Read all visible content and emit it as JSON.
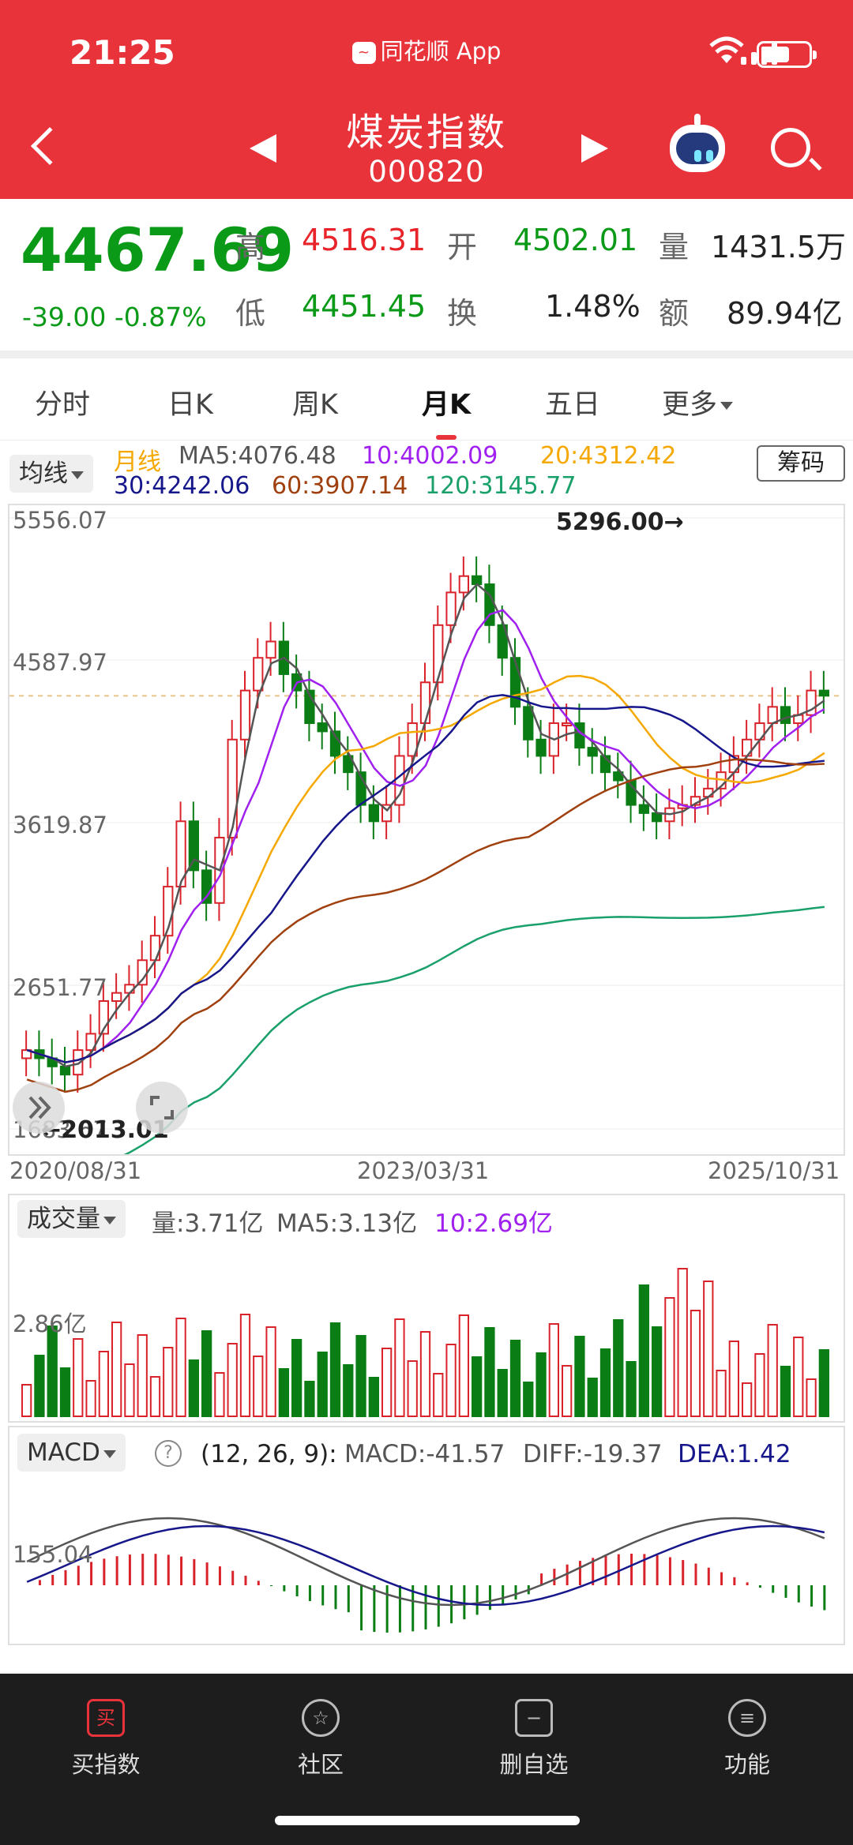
{
  "status": {
    "time": "21:25",
    "app": "同花顺 App"
  },
  "header": {
    "title": "煤炭指数",
    "code": "000820"
  },
  "quote": {
    "price": "4467.69",
    "change": "-39.00",
    "change_pct": "-0.87%",
    "high_label": "高",
    "high": "4516.31",
    "open_label": "开",
    "open": "4502.01",
    "vol_label": "量",
    "vol": "1431.5万",
    "low_label": "低",
    "low": "4451.45",
    "turn_label": "换",
    "turn": "1.48%",
    "amt_label": "额",
    "amt": "89.94亿"
  },
  "tabs": [
    "分时",
    "日K",
    "周K",
    "月K",
    "五日",
    "更多"
  ],
  "ma": {
    "chip": "均线",
    "label": "月线",
    "ma5": "MA5:4076.48",
    "ma10": "10:4002.09",
    "ma20": "20:4312.42",
    "ma30": "30:4242.06",
    "ma60": "60:3907.14",
    "ma120": "120:3145.77",
    "chouma": "筹码"
  },
  "chart_data": {
    "type": "candlestick",
    "y_labels": [
      "5556.07",
      "4587.97",
      "3619.87",
      "2651.77",
      "1683.67"
    ],
    "x_labels": [
      "2020/08/31",
      "2023/03/31",
      "2025/10/31"
    ],
    "high_marker": "5296.00→",
    "low_marker": "←2013.01",
    "last_close": 4467.69,
    "colors": {
      "up": "#d9232b",
      "down": "#0a7d14",
      "ma5": "#555555",
      "ma10": "#a020f0",
      "ma20": "#f5a800",
      "ma30": "#17178c",
      "ma60": "#a0400e",
      "ma120": "#1aa06a"
    }
  },
  "volume": {
    "chip": "成交量",
    "vol": "量:3.71亿",
    "ma5": "MA5:3.13亿",
    "ma10": "10:2.69亿",
    "y_label": "2.86亿"
  },
  "macd": {
    "chip": "MACD",
    "help": "?",
    "params": "(12, 26, 9):",
    "macd": "MACD:-41.57",
    "diff": "DIFF:-19.37",
    "dea": "DEA:1.42",
    "y_label": "155.04"
  },
  "nav": [
    {
      "icon": "买",
      "label": "买指数"
    },
    {
      "icon": "☆",
      "label": "社区"
    },
    {
      "icon": "−",
      "label": "删自选"
    },
    {
      "icon": "≡",
      "label": "功能"
    }
  ]
}
